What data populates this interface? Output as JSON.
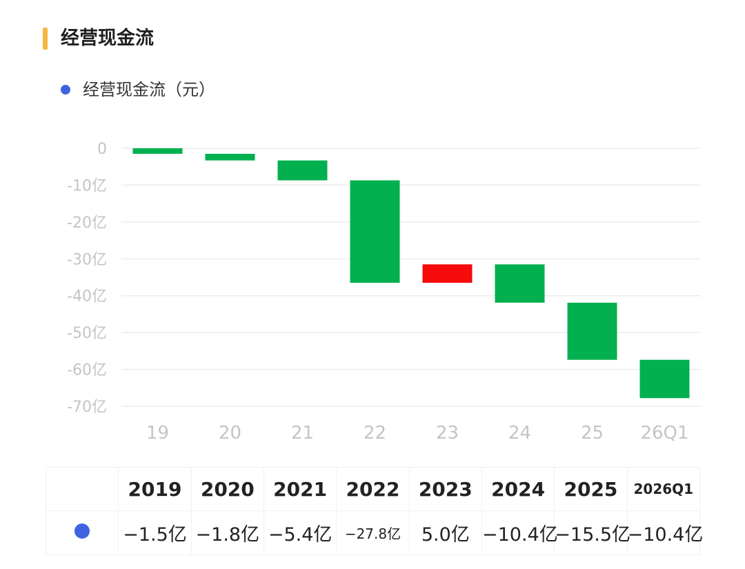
{
  "section": {
    "title": "经营现金流",
    "accent_color": "#f5b83d"
  },
  "legend": {
    "label": "经营现金流（元）",
    "dot_color": "#3f63e0"
  },
  "colors": {
    "negative": "#02b050",
    "positive": "#f60a0a",
    "grid": "#ececec",
    "ticks": "#c4c4c4"
  },
  "chart_data": {
    "type": "bar",
    "subtype": "waterfall",
    "title": "",
    "xlabel": "",
    "ylabel": "",
    "categories": [
      "19",
      "20",
      "21",
      "22",
      "23",
      "24",
      "25",
      "26Q1"
    ],
    "values": [
      -1.5,
      -1.8,
      -5.4,
      -27.8,
      5.0,
      -10.4,
      -15.5,
      -10.4
    ],
    "cumulative": [
      -1.5,
      -3.3,
      -8.7,
      -36.5,
      -31.5,
      -41.9,
      -57.4,
      -67.8
    ],
    "unit": "亿",
    "ylim": [
      -70,
      0
    ],
    "yticks": [
      0,
      -10,
      -20,
      -30,
      -40,
      -50,
      -60,
      -70
    ],
    "ytick_labels": [
      "0",
      "-10亿",
      "-20亿",
      "-30亿",
      "-40亿",
      "-50亿",
      "-60亿",
      "-70亿"
    ],
    "grid": true,
    "legend_position": "top-left"
  },
  "table": {
    "headers": [
      "2019",
      "2020",
      "2021",
      "2022",
      "2023",
      "2024",
      "2025",
      "2026Q1"
    ],
    "values": [
      "−1.5亿",
      "−1.8亿",
      "−5.4亿",
      "−27.8亿",
      "5.0亿",
      "−10.4亿",
      "−15.5亿",
      "−10.4亿"
    ]
  }
}
